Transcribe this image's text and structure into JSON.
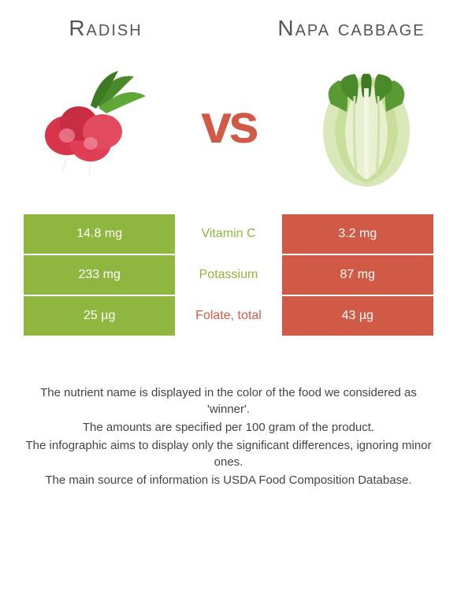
{
  "title_left": "Radish",
  "title_right": "Napa cabbage",
  "vs": "vs",
  "colors": {
    "left_bg": "#8fb63f",
    "right_bg": "#d05a45",
    "left_text": "#8fb63f",
    "right_text": "#d05a45"
  },
  "rows": [
    {
      "left": "14.8 mg",
      "label": "Vitamin C",
      "right": "3.2 mg",
      "winner": "left"
    },
    {
      "left": "233 mg",
      "label": "Potassium",
      "right": "87 mg",
      "winner": "left"
    },
    {
      "left": "25 µg",
      "label": "Folate, total",
      "right": "43 µg",
      "winner": "right"
    }
  ],
  "footnotes": [
    "The nutrient name is displayed in the color of the food we considered as 'winner'.",
    "The amounts are specified per 100 gram of the product.",
    "The infographic aims to display only the significant differences, ignoring minor ones.",
    "The main source of information is USDA Food Composition Database."
  ]
}
